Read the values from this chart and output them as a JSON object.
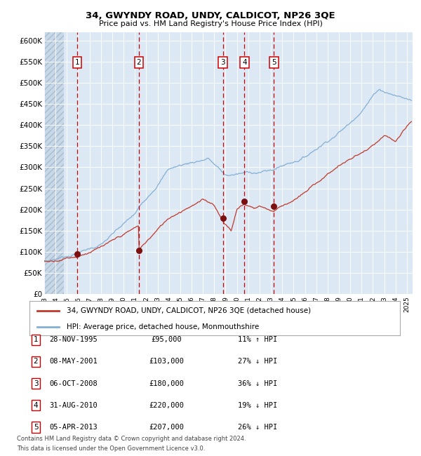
{
  "title": "34, GWYNDY ROAD, UNDY, CALDICOT, NP26 3QE",
  "subtitle": "Price paid vs. HM Land Registry's House Price Index (HPI)",
  "ylim": [
    0,
    620000
  ],
  "yticks": [
    0,
    50000,
    100000,
    150000,
    200000,
    250000,
    300000,
    350000,
    400000,
    450000,
    500000,
    550000,
    600000
  ],
  "xlim": [
    1993.0,
    2025.5
  ],
  "background_color": "#dce9f5",
  "grid_color": "#ffffff",
  "red_line_color": "#c0392b",
  "blue_line_color": "#85afd4",
  "sale_marker_color": "#7a1010",
  "dashed_line_color": "#cc0000",
  "sales": [
    {
      "num": 1,
      "date": "28-NOV-1995",
      "price": 95000,
      "hpi_pct": "11%",
      "hpi_dir": "↑"
    },
    {
      "num": 2,
      "date": "08-MAY-2001",
      "price": 103000,
      "hpi_pct": "27%",
      "hpi_dir": "↓"
    },
    {
      "num": 3,
      "date": "06-OCT-2008",
      "price": 180000,
      "hpi_pct": "36%",
      "hpi_dir": "↓"
    },
    {
      "num": 4,
      "date": "31-AUG-2010",
      "price": 220000,
      "hpi_pct": "19%",
      "hpi_dir": "↓"
    },
    {
      "num": 5,
      "date": "05-APR-2013",
      "price": 207000,
      "hpi_pct": "26%",
      "hpi_dir": "↓"
    }
  ],
  "sale_x": [
    1995.91,
    2001.35,
    2008.76,
    2010.66,
    2013.26
  ],
  "sale_y": [
    95000,
    103000,
    180000,
    220000,
    207000
  ],
  "footnote_line1": "Contains HM Land Registry data © Crown copyright and database right 2024.",
  "footnote_line2": "This data is licensed under the Open Government Licence v3.0.",
  "legend_label_red": "34, GWYNDY ROAD, UNDY, CALDICOT, NP26 3QE (detached house)",
  "legend_label_blue": "HPI: Average price, detached house, Monmouthshire",
  "hatch_end": 1994.75
}
